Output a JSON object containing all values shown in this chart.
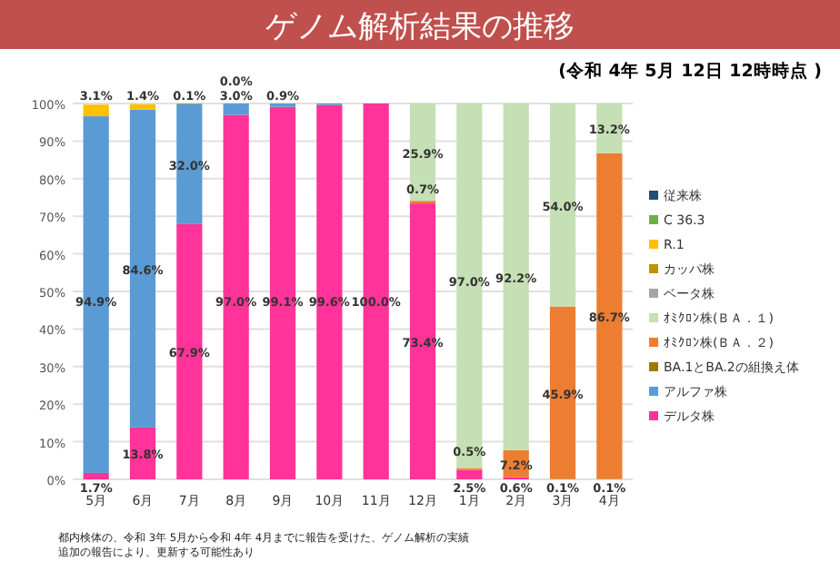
{
  "chart_data": {
    "type": "bar",
    "stacked": true,
    "title": "ゲノム解析結果の推移",
    "subtitle": "(令和 4年 5月 12日 12時時点 )",
    "categories": [
      "5月",
      "6月",
      "7月",
      "8月",
      "9月",
      "10月",
      "11月",
      "12月",
      "1月",
      "2月",
      "3月",
      "4月"
    ],
    "ylim": [
      0,
      100
    ],
    "yticks": [
      {
        "value": 0,
        "label": "0%"
      },
      {
        "value": 10,
        "label": "10%"
      },
      {
        "value": 20,
        "label": "20%"
      },
      {
        "value": 30,
        "label": "30%"
      },
      {
        "value": 40,
        "label": "40%"
      },
      {
        "value": 50,
        "label": "50%"
      },
      {
        "value": 60,
        "label": "60%"
      },
      {
        "value": 70,
        "label": "70%"
      },
      {
        "value": 80,
        "label": "80%"
      },
      {
        "value": 90,
        "label": "90%"
      },
      {
        "value": 100,
        "label": "100%"
      }
    ],
    "grid": "y",
    "legend": "right",
    "series": [
      {
        "name": "デルタ株",
        "color": "#ff3399",
        "values": [
          1.7,
          13.8,
          67.9,
          97.0,
          99.1,
          99.6,
          100.0,
          73.4,
          2.5,
          0.6,
          null,
          null
        ],
        "value_labels": [
          "1.7%",
          "13.8%",
          "67.9%",
          "97.0%",
          "99.1%",
          "99.6%",
          "100.0%",
          "73.4%",
          "2.5%",
          "0.6%",
          null,
          null
        ]
      },
      {
        "name": "アルファ株",
        "color": "#5b9bd5",
        "values": [
          94.9,
          84.6,
          32.0,
          3.0,
          0.9,
          0.4,
          null,
          null,
          null,
          null,
          null,
          null
        ],
        "value_labels": [
          "94.9%",
          "84.6%",
          "32.0%",
          "3.0%",
          "0.9%",
          null,
          null,
          null,
          null,
          null,
          null,
          null
        ]
      },
      {
        "name": "BA.1とBA.2の組換え体",
        "color": "#9c7a00",
        "values": [
          null,
          null,
          null,
          null,
          null,
          null,
          null,
          null,
          null,
          null,
          0.1,
          0.1
        ],
        "value_labels": [
          null,
          null,
          null,
          null,
          null,
          null,
          null,
          null,
          null,
          null,
          "0.1%",
          "0.1%"
        ]
      },
      {
        "name": "ｵﾐｸﾛﾝ株(ＢＡ．２)",
        "color": "#ed7d31",
        "values": [
          null,
          null,
          null,
          null,
          null,
          null,
          null,
          0.7,
          0.5,
          7.2,
          45.9,
          86.7
        ],
        "value_labels": [
          null,
          null,
          null,
          null,
          null,
          null,
          null,
          "0.7%",
          "0.5%",
          "7.2%",
          "45.9%",
          "86.7%"
        ]
      },
      {
        "name": "ｵﾐｸﾛﾝ株(ＢＡ．１)",
        "color": "#c5e0b4",
        "values": [
          null,
          null,
          null,
          null,
          null,
          null,
          null,
          25.9,
          97.0,
          92.2,
          54.0,
          13.2
        ],
        "value_labels": [
          null,
          null,
          null,
          null,
          null,
          null,
          null,
          "25.9%",
          "97.0%",
          "92.2%",
          "54.0%",
          "13.2%"
        ]
      },
      {
        "name": "ベータ株",
        "color": "#a5a5a5",
        "values": [
          null,
          null,
          null,
          null,
          null,
          null,
          null,
          null,
          null,
          null,
          null,
          null
        ]
      },
      {
        "name": "カッパ株",
        "color": "#bf9000",
        "values": [
          null,
          null,
          0.1,
          0.0,
          null,
          null,
          null,
          null,
          null,
          null,
          null,
          null
        ],
        "value_labels": [
          null,
          null,
          "0.1%",
          "0.0%",
          null,
          null,
          null,
          null,
          null,
          null,
          null,
          null
        ]
      },
      {
        "name": "R.1",
        "color": "#ffc000",
        "values": [
          3.1,
          1.4,
          null,
          null,
          null,
          null,
          null,
          null,
          null,
          null,
          null,
          null
        ],
        "value_labels": [
          "3.1%",
          "1.4%",
          null,
          null,
          null,
          null,
          null,
          null,
          null,
          null,
          null,
          null
        ]
      },
      {
        "name": "C 36.3",
        "color": "#70ad47",
        "values": [
          null,
          null,
          null,
          null,
          null,
          null,
          null,
          null,
          null,
          null,
          null,
          null
        ]
      },
      {
        "name": "従来株",
        "color": "#1f4e79",
        "values": [
          null,
          null,
          null,
          null,
          null,
          null,
          null,
          null,
          null,
          null,
          null,
          null
        ]
      }
    ],
    "annotations": [
      "都内検体の、令和 3年 5月から令和 4年 4月までに報告を受けた、ゲノム解析の実績",
      "追加の報告により、更新する可能性あり"
    ]
  }
}
